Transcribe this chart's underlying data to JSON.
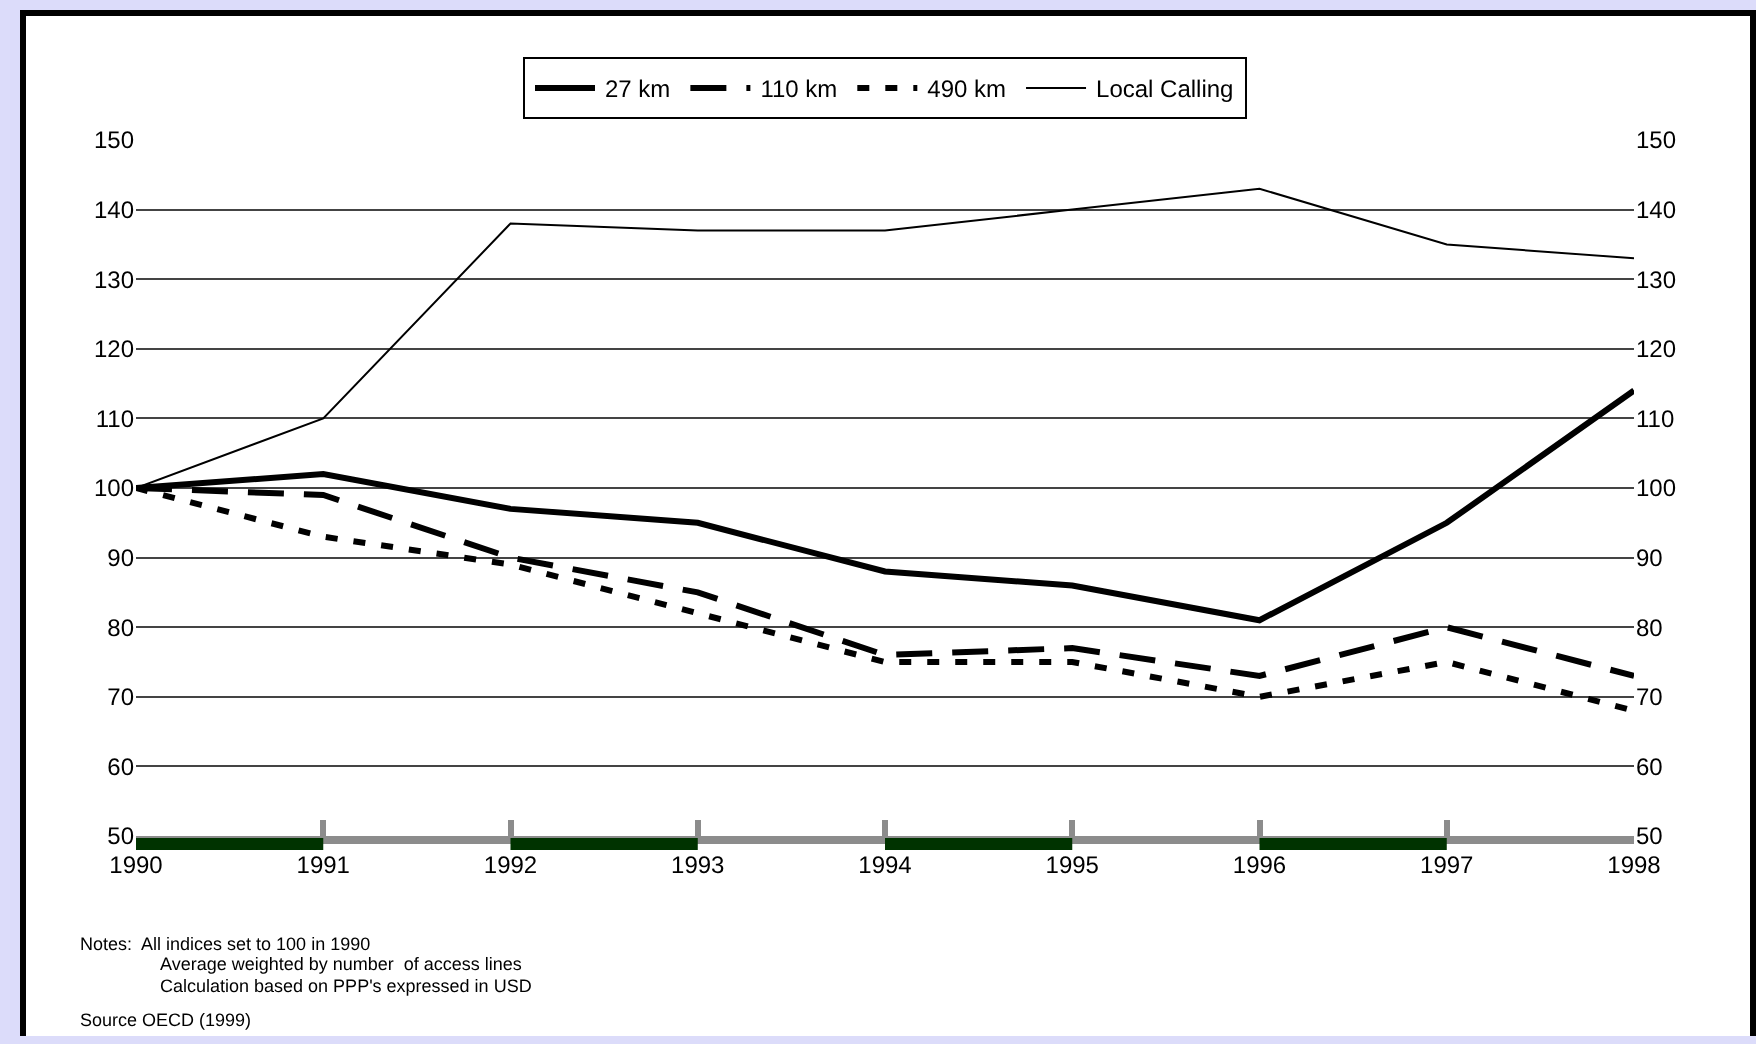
{
  "chart_data": {
    "type": "line",
    "x": [
      1990,
      1991,
      1992,
      1993,
      1994,
      1995,
      1996,
      1997,
      1998
    ],
    "series": [
      {
        "name": "27 km",
        "color": "#000000",
        "line_style": "solid",
        "values": [
          100,
          102,
          97,
          95,
          88,
          86,
          81,
          95,
          114
        ]
      },
      {
        "name": "110 km",
        "color": "#000000",
        "line_style": "dashed",
        "values": [
          100,
          99,
          90,
          85,
          76,
          77,
          73,
          80,
          73
        ]
      },
      {
        "name": "490 km",
        "color": "#000000",
        "line_style": "dotted",
        "values": [
          100,
          93,
          89,
          82,
          75,
          75,
          70,
          75,
          68
        ]
      },
      {
        "name": "Local Calling",
        "color": "#000000",
        "line_style": "solid",
        "values": [
          100,
          110,
          138,
          137,
          137,
          140,
          143,
          135,
          133
        ]
      }
    ],
    "xlim": [
      1990,
      1998
    ],
    "xticks": [
      1990,
      1991,
      1992,
      1993,
      1994,
      1995,
      1996,
      1997,
      1998
    ],
    "ylim": [
      50,
      150
    ],
    "yticks": [
      50,
      60,
      70,
      80,
      90,
      100,
      110,
      120,
      130,
      140,
      150
    ],
    "y2lim": [
      50,
      150
    ],
    "y2ticks": [
      50,
      60,
      70,
      80,
      90,
      100,
      110,
      120,
      130,
      140,
      150
    ],
    "grid": "y",
    "legend": "top",
    "marker": "none",
    "annotations": [
      "Notes:  All indices set to 100 in 1990",
      "Average weighted by number  of access lines",
      "Calculation based on PPP's expressed in USD",
      "Source OECD (1999)"
    ]
  }
}
